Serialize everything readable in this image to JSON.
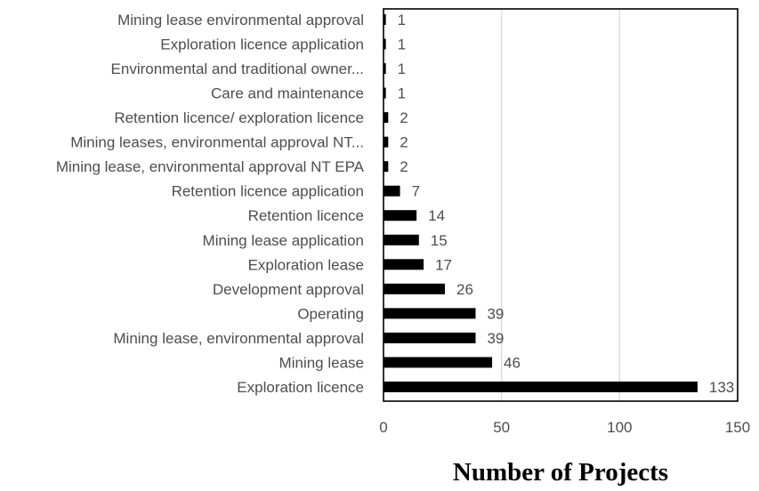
{
  "chart_data": {
    "type": "bar",
    "orientation": "horizontal",
    "categories": [
      "Mining lease environmental approval",
      "Exploration licence application",
      "Environmental and traditional owner...",
      "Care and maintenance",
      "Retention licence/ exploration licence",
      "Mining leases, environmental approval NT...",
      "Mining lease, environmental approval NT EPA",
      "Retention licence application",
      "Retention licence",
      "Mining lease application",
      "Exploration lease",
      "Development approval",
      "Operating",
      "Mining lease, environmental approval",
      "Mining lease",
      "Exploration licence"
    ],
    "values": [
      1,
      1,
      1,
      1,
      2,
      2,
      2,
      7,
      14,
      15,
      17,
      26,
      39,
      39,
      46,
      133
    ],
    "data_labels": [
      "1",
      "1",
      "1",
      "1",
      "2",
      "2",
      "2",
      "7",
      "14",
      "15",
      "17",
      "26",
      "39",
      "39",
      "46",
      "133"
    ],
    "xlim": [
      0,
      150
    ],
    "xticks": [
      0,
      50,
      100,
      150
    ],
    "xtick_labels": [
      "0",
      "50",
      "100",
      "150"
    ],
    "title": "",
    "xlabel": "Number of Projects",
    "ylabel": "",
    "grid": "vertical",
    "legend": "none",
    "bar_color": "#000000",
    "grid_color": "#d9d9d9",
    "text_color": "#4d4d4d"
  }
}
